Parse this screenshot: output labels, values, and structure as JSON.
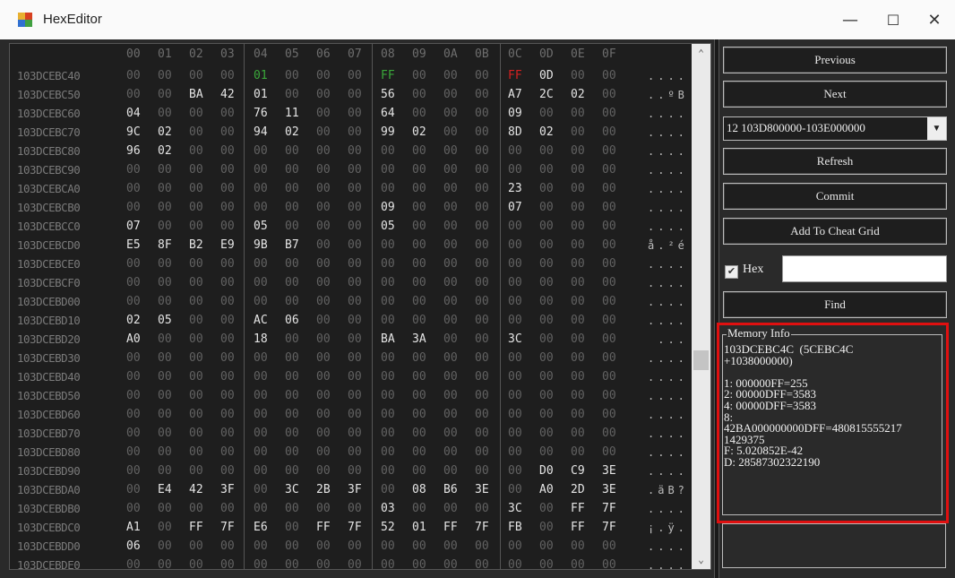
{
  "window": {
    "title": "HexEditor",
    "minimize": "—",
    "maximize": "☐",
    "close": "✕"
  },
  "hex": {
    "columns": [
      "00",
      "01",
      "02",
      "03",
      "04",
      "05",
      "06",
      "07",
      "08",
      "09",
      "0A",
      "0B",
      "0C",
      "0D",
      "0E",
      "0F"
    ],
    "rows": [
      {
        "addr": "103DCEBC40",
        "bytes": [
          "00",
          "00",
          "00",
          "00",
          "01",
          "00",
          "00",
          "00",
          "FF",
          "00",
          "00",
          "00",
          "FF",
          "0D",
          "00",
          "00"
        ],
        "ascii": "...."
      },
      {
        "addr": "103DCEBC50",
        "bytes": [
          "00",
          "00",
          "BA",
          "42",
          "01",
          "00",
          "00",
          "00",
          "56",
          "00",
          "00",
          "00",
          "A7",
          "2C",
          "02",
          "00"
        ],
        "ascii": "..ºB"
      },
      {
        "addr": "103DCEBC60",
        "bytes": [
          "04",
          "00",
          "00",
          "00",
          "76",
          "11",
          "00",
          "00",
          "64",
          "00",
          "00",
          "00",
          "09",
          "00",
          "00",
          "00"
        ],
        "ascii": "...."
      },
      {
        "addr": "103DCEBC70",
        "bytes": [
          "9C",
          "02",
          "00",
          "00",
          "94",
          "02",
          "00",
          "00",
          "99",
          "02",
          "00",
          "00",
          "8D",
          "02",
          "00",
          "00"
        ],
        "ascii": "...."
      },
      {
        "addr": "103DCEBC80",
        "bytes": [
          "96",
          "02",
          "00",
          "00",
          "00",
          "00",
          "00",
          "00",
          "00",
          "00",
          "00",
          "00",
          "00",
          "00",
          "00",
          "00"
        ],
        "ascii": "...."
      },
      {
        "addr": "103DCEBC90",
        "bytes": [
          "00",
          "00",
          "00",
          "00",
          "00",
          "00",
          "00",
          "00",
          "00",
          "00",
          "00",
          "00",
          "00",
          "00",
          "00",
          "00"
        ],
        "ascii": "...."
      },
      {
        "addr": "103DCEBCA0",
        "bytes": [
          "00",
          "00",
          "00",
          "00",
          "00",
          "00",
          "00",
          "00",
          "00",
          "00",
          "00",
          "00",
          "23",
          "00",
          "00",
          "00"
        ],
        "ascii": "...."
      },
      {
        "addr": "103DCEBCB0",
        "bytes": [
          "00",
          "00",
          "00",
          "00",
          "00",
          "00",
          "00",
          "00",
          "09",
          "00",
          "00",
          "00",
          "07",
          "00",
          "00",
          "00"
        ],
        "ascii": "...."
      },
      {
        "addr": "103DCEBCC0",
        "bytes": [
          "07",
          "00",
          "00",
          "00",
          "05",
          "00",
          "00",
          "00",
          "05",
          "00",
          "00",
          "00",
          "00",
          "00",
          "00",
          "00"
        ],
        "ascii": "...."
      },
      {
        "addr": "103DCEBCD0",
        "bytes": [
          "E5",
          "8F",
          "B2",
          "E9",
          "9B",
          "B7",
          "00",
          "00",
          "00",
          "00",
          "00",
          "00",
          "00",
          "00",
          "00",
          "00"
        ],
        "ascii": "å.²é"
      },
      {
        "addr": "103DCEBCE0",
        "bytes": [
          "00",
          "00",
          "00",
          "00",
          "00",
          "00",
          "00",
          "00",
          "00",
          "00",
          "00",
          "00",
          "00",
          "00",
          "00",
          "00"
        ],
        "ascii": "...."
      },
      {
        "addr": "103DCEBCF0",
        "bytes": [
          "00",
          "00",
          "00",
          "00",
          "00",
          "00",
          "00",
          "00",
          "00",
          "00",
          "00",
          "00",
          "00",
          "00",
          "00",
          "00"
        ],
        "ascii": "...."
      },
      {
        "addr": "103DCEBD00",
        "bytes": [
          "00",
          "00",
          "00",
          "00",
          "00",
          "00",
          "00",
          "00",
          "00",
          "00",
          "00",
          "00",
          "00",
          "00",
          "00",
          "00"
        ],
        "ascii": "...."
      },
      {
        "addr": "103DCEBD10",
        "bytes": [
          "02",
          "05",
          "00",
          "00",
          "AC",
          "06",
          "00",
          "00",
          "00",
          "00",
          "00",
          "00",
          "00",
          "00",
          "00",
          "00"
        ],
        "ascii": "...."
      },
      {
        "addr": "103DCEBD20",
        "bytes": [
          "A0",
          "00",
          "00",
          "00",
          "18",
          "00",
          "00",
          "00",
          "BA",
          "3A",
          "00",
          "00",
          "3C",
          "00",
          "00",
          "00"
        ],
        "ascii": " ..."
      },
      {
        "addr": "103DCEBD30",
        "bytes": [
          "00",
          "00",
          "00",
          "00",
          "00",
          "00",
          "00",
          "00",
          "00",
          "00",
          "00",
          "00",
          "00",
          "00",
          "00",
          "00"
        ],
        "ascii": "...."
      },
      {
        "addr": "103DCEBD40",
        "bytes": [
          "00",
          "00",
          "00",
          "00",
          "00",
          "00",
          "00",
          "00",
          "00",
          "00",
          "00",
          "00",
          "00",
          "00",
          "00",
          "00"
        ],
        "ascii": "...."
      },
      {
        "addr": "103DCEBD50",
        "bytes": [
          "00",
          "00",
          "00",
          "00",
          "00",
          "00",
          "00",
          "00",
          "00",
          "00",
          "00",
          "00",
          "00",
          "00",
          "00",
          "00"
        ],
        "ascii": "...."
      },
      {
        "addr": "103DCEBD60",
        "bytes": [
          "00",
          "00",
          "00",
          "00",
          "00",
          "00",
          "00",
          "00",
          "00",
          "00",
          "00",
          "00",
          "00",
          "00",
          "00",
          "00"
        ],
        "ascii": "...."
      },
      {
        "addr": "103DCEBD70",
        "bytes": [
          "00",
          "00",
          "00",
          "00",
          "00",
          "00",
          "00",
          "00",
          "00",
          "00",
          "00",
          "00",
          "00",
          "00",
          "00",
          "00"
        ],
        "ascii": "...."
      },
      {
        "addr": "103DCEBD80",
        "bytes": [
          "00",
          "00",
          "00",
          "00",
          "00",
          "00",
          "00",
          "00",
          "00",
          "00",
          "00",
          "00",
          "00",
          "00",
          "00",
          "00"
        ],
        "ascii": "...."
      },
      {
        "addr": "103DCEBD90",
        "bytes": [
          "00",
          "00",
          "00",
          "00",
          "00",
          "00",
          "00",
          "00",
          "00",
          "00",
          "00",
          "00",
          "00",
          "D0",
          "C9",
          "3E"
        ],
        "ascii": "...."
      },
      {
        "addr": "103DCEBDA0",
        "bytes": [
          "00",
          "E4",
          "42",
          "3F",
          "00",
          "3C",
          "2B",
          "3F",
          "00",
          "08",
          "B6",
          "3E",
          "00",
          "A0",
          "2D",
          "3E"
        ],
        "ascii": ".äB?"
      },
      {
        "addr": "103DCEBDB0",
        "bytes": [
          "00",
          "00",
          "00",
          "00",
          "00",
          "00",
          "00",
          "00",
          "03",
          "00",
          "00",
          "00",
          "3C",
          "00",
          "FF",
          "7F"
        ],
        "ascii": "...."
      },
      {
        "addr": "103DCEBDC0",
        "bytes": [
          "A1",
          "00",
          "FF",
          "7F",
          "E6",
          "00",
          "FF",
          "7F",
          "52",
          "01",
          "FF",
          "7F",
          "FB",
          "00",
          "FF",
          "7F"
        ],
        "ascii": "¡.ÿ."
      },
      {
        "addr": "103DCEBDD0",
        "bytes": [
          "06",
          "00",
          "00",
          "00",
          "00",
          "00",
          "00",
          "00",
          "00",
          "00",
          "00",
          "00",
          "00",
          "00",
          "00",
          "00"
        ],
        "ascii": "...."
      },
      {
        "addr": "103DCEBDE0",
        "bytes": [
          "00",
          "00",
          "00",
          "00",
          "00",
          "00",
          "00",
          "00",
          "00",
          "00",
          "00",
          "00",
          "00",
          "00",
          "00",
          "00"
        ],
        "ascii": "...."
      }
    ],
    "highlights": [
      {
        "row": 0,
        "col": 4,
        "color": "#3aa83a"
      },
      {
        "row": 0,
        "col": 8,
        "color": "#3aa83a"
      },
      {
        "row": 0,
        "col": 12,
        "color": "#d42020"
      }
    ],
    "colors": {
      "background": "#1e1e1e",
      "zero_byte": "#626262",
      "nonzero_byte": "#e4e4e4",
      "address": "#7a7a7a"
    }
  },
  "panel": {
    "previous": "Previous",
    "next": "Next",
    "region_select": "12 103D800000-103E000000",
    "refresh": "Refresh",
    "commit": "Commit",
    "add_to_cheat_grid": "Add To Cheat Grid",
    "hex_checkbox_label": "Hex",
    "hex_checked": true,
    "search_value": "",
    "find": "Find",
    "memory_info": {
      "label": "Memory Info",
      "lines": [
        "103DCEBC4C  (5CEBC4C",
        "+1038000000)",
        "",
        "1: 000000FF=255",
        "2: 00000DFF=3583",
        "4: 00000DFF=3583",
        "8:",
        "42BA000000000DFF=480815555217",
        "1429375",
        "F: 5.020852E-42",
        "D: 28587302322190"
      ],
      "highlight_color": "#e01010"
    }
  }
}
